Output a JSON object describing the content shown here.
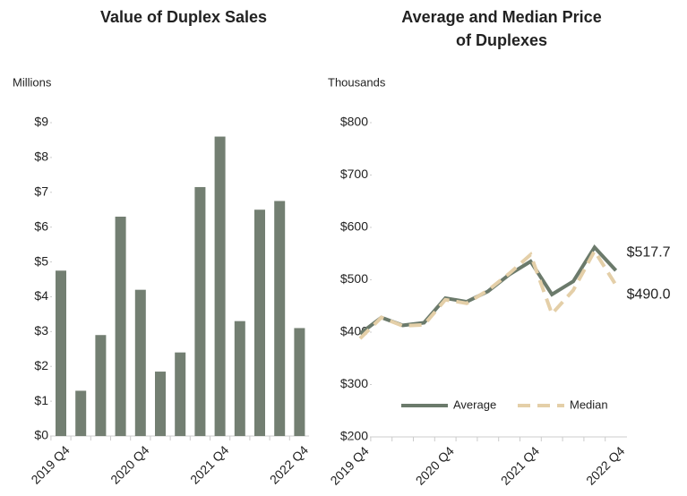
{
  "chart_data": [
    {
      "type": "bar",
      "title": [
        "Value of Duplex Sales"
      ],
      "y_axis_label": "Millions",
      "categories": [
        "2019 Q4",
        null,
        null,
        null,
        "2020 Q4",
        null,
        null,
        null,
        "2021 Q4",
        null,
        null,
        null,
        "2022 Q4"
      ],
      "values": [
        4.75,
        1.3,
        2.9,
        6.3,
        4.2,
        1.85,
        2.4,
        7.15,
        8.6,
        3.3,
        6.5,
        6.75,
        3.1
      ],
      "color": "#737f72",
      "ylim": [
        0,
        9
      ],
      "yticks": [
        {
          "value": 0,
          "label": "$0"
        },
        {
          "value": 1,
          "label": "$1"
        },
        {
          "value": 2,
          "label": "$2"
        },
        {
          "value": 3,
          "label": "$3"
        },
        {
          "value": 4,
          "label": "$4"
        },
        {
          "value": 5,
          "label": "$5"
        },
        {
          "value": 6,
          "label": "$6"
        },
        {
          "value": 7,
          "label": "$7"
        },
        {
          "value": 8,
          "label": "$8"
        },
        {
          "value": 9,
          "label": "$9"
        }
      ]
    },
    {
      "type": "line",
      "title": [
        "Average and Median Price",
        "of Duplexes"
      ],
      "y_axis_label": "Thousands",
      "categories": [
        "2019 Q4",
        null,
        null,
        null,
        "2020 Q4",
        null,
        null,
        null,
        "2021 Q4",
        null,
        null,
        null,
        "2022 Q4"
      ],
      "series": [
        {
          "name": "Average",
          "color": "#6b7a6b",
          "dashed": false,
          "values": [
            397,
            428,
            413,
            418,
            465,
            458,
            478,
            510,
            535,
            472,
            497,
            562,
            517.7
          ],
          "value_labels": [
            null,
            null,
            null,
            null,
            null,
            null,
            null,
            null,
            null,
            null,
            null,
            null,
            "$517.7"
          ]
        },
        {
          "name": "Median",
          "color": "#e4cfa8",
          "dashed": true,
          "values": [
            388,
            428,
            412,
            414,
            462,
            455,
            480,
            512,
            548,
            435,
            480,
            555,
            490.0
          ],
          "value_labels": [
            null,
            null,
            null,
            null,
            null,
            null,
            null,
            null,
            null,
            null,
            null,
            null,
            "$490.0"
          ]
        }
      ],
      "ylim": [
        200,
        800
      ],
      "yticks": [
        {
          "value": 200,
          "label": "$200"
        },
        {
          "value": 300,
          "label": "$300"
        },
        {
          "value": 400,
          "label": "$400"
        },
        {
          "value": 500,
          "label": "$500"
        },
        {
          "value": 600,
          "label": "$600"
        },
        {
          "value": 700,
          "label": "$700"
        },
        {
          "value": 800,
          "label": "$800"
        }
      ],
      "legend": "bottom-left"
    }
  ]
}
